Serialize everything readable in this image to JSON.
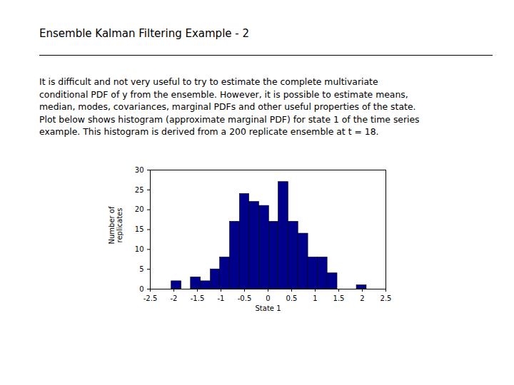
{
  "slide": {
    "title": "Ensemble Kalman Filtering Example - 2",
    "paragraph": [
      "It is difficult and not very useful to try to estimate the complete multivariate",
      "conditional PDF of y from the ensemble.  However, it is possible to estimate means,",
      "median, modes, covariances, marginal PDFs and other useful properties of the state.",
      "Plot below shows histogram (approximate marginal PDF) for state 1 of the time series",
      "example.  This histogram is derived from a 200 replicate ensemble at t = 18."
    ]
  },
  "chart_data": {
    "type": "histogram",
    "x_label": "State 1",
    "y_label": "Number of replicates",
    "bins": [
      -2.05,
      -1.84,
      -1.64,
      -1.43,
      -1.22,
      -1.02,
      -0.81,
      -0.6,
      -0.4,
      -0.19,
      0.02,
      0.22,
      0.43,
      0.64,
      0.85,
      1.05,
      1.26,
      1.47,
      1.67,
      1.88,
      2.09
    ],
    "values": [
      2,
      0,
      3,
      2,
      5,
      8,
      17,
      24,
      22,
      21,
      17,
      27,
      17,
      14,
      8,
      8,
      4,
      0,
      0,
      1
    ],
    "color": "#00008b",
    "xlim": [
      -2.5,
      2.5
    ],
    "xticks": [
      -2.5,
      -2,
      -1.5,
      -1,
      -0.5,
      0,
      0.5,
      1,
      1.5,
      2,
      2.5
    ],
    "ylim": [
      0,
      30
    ],
    "yticks": [
      0,
      5,
      10,
      15,
      20,
      25,
      30
    ],
    "grid": false
  }
}
